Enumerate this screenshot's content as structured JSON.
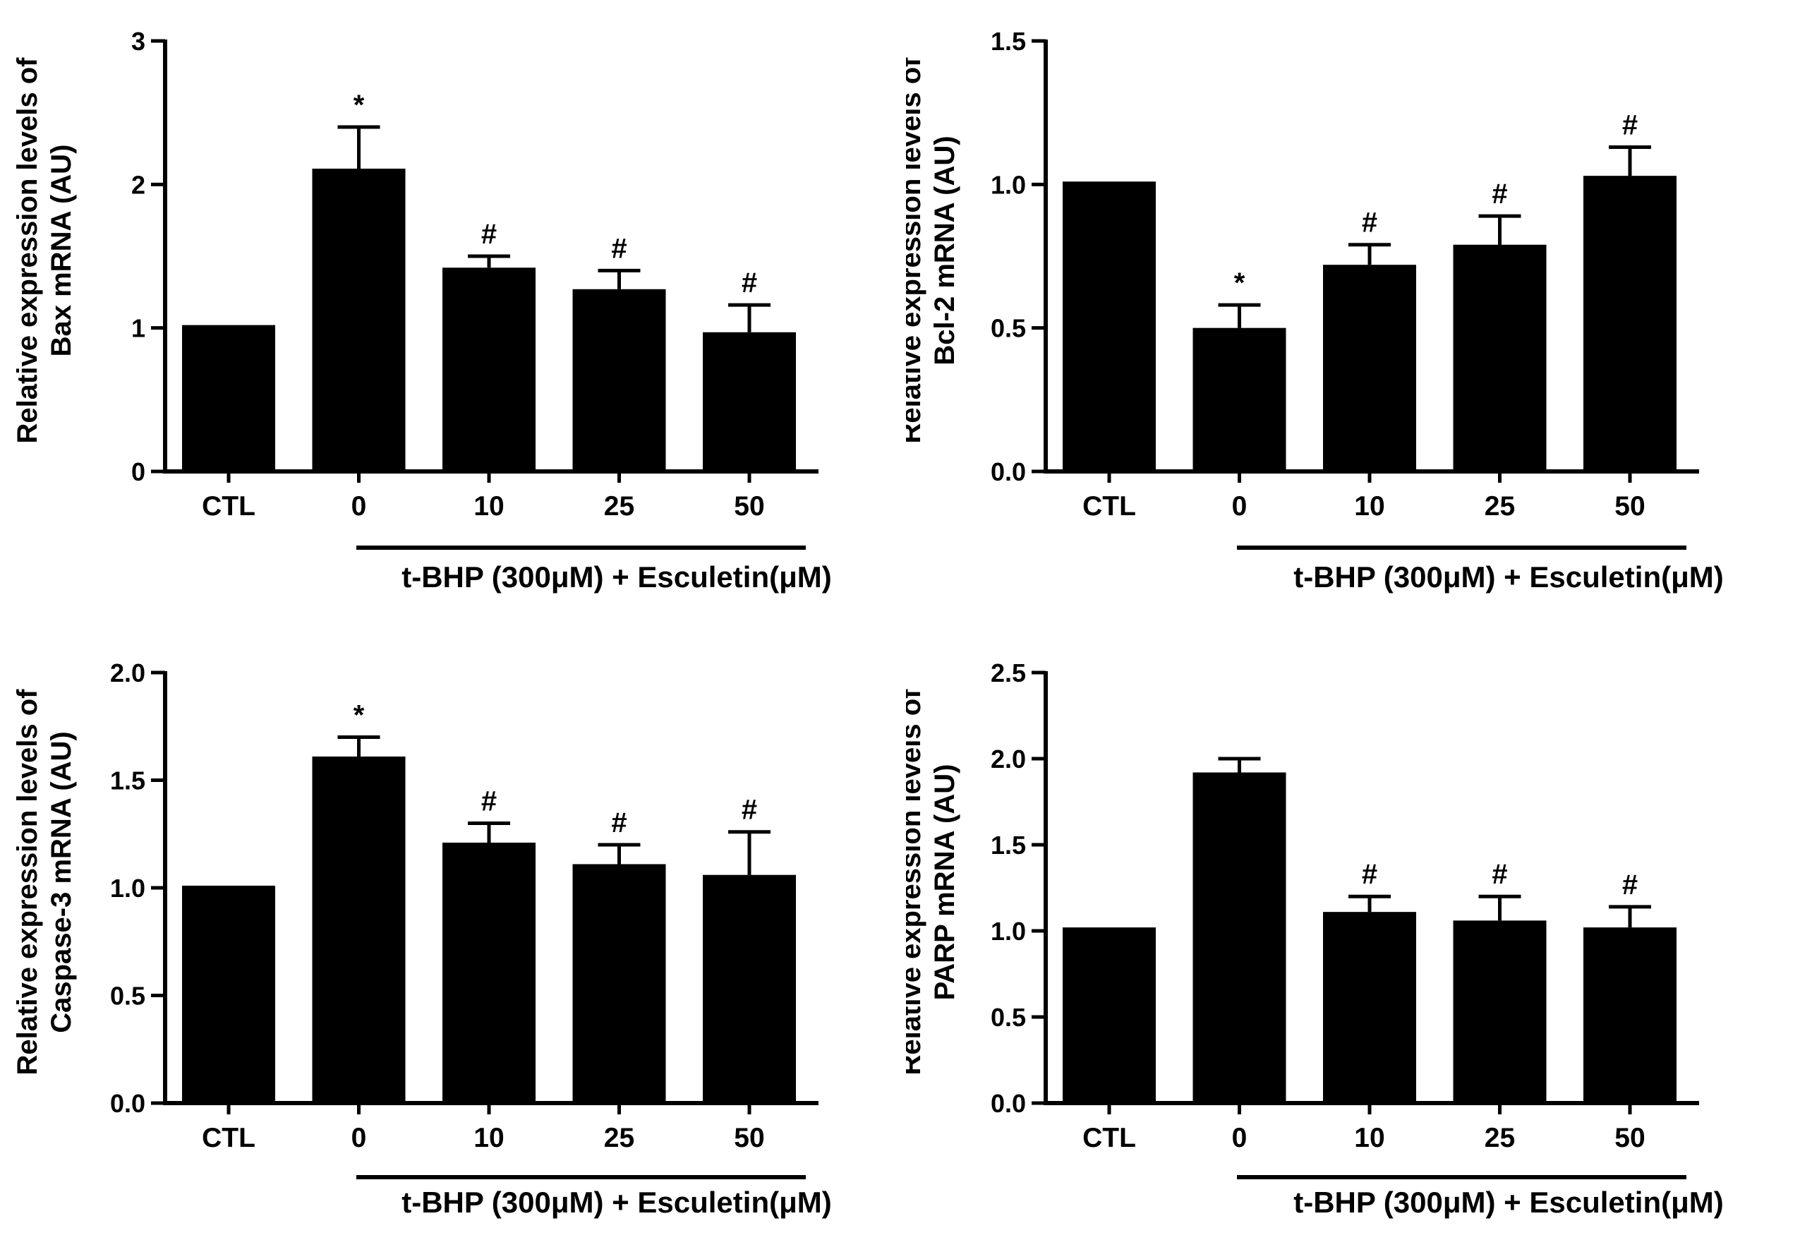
{
  "chart_data": [
    {
      "type": "bar",
      "title": "",
      "ylabel_line1": "Relative expression levels of",
      "ylabel_line2": "Bax mRNA (AU)",
      "categories": [
        "CTL",
        "0",
        "10",
        "25",
        "50"
      ],
      "values": [
        1.02,
        2.11,
        1.42,
        1.27,
        0.97
      ],
      "errors": [
        0,
        0.29,
        0.08,
        0.13,
        0.19
      ],
      "significance": [
        "",
        "*",
        "#",
        "#",
        "#"
      ],
      "ylim": [
        0,
        3
      ],
      "yticks": [
        0,
        1,
        2,
        3
      ],
      "ytick_labels": [
        "0",
        "1",
        "2",
        "3"
      ],
      "group_label": "t-BHP (300μM) + Esculetin(μM)",
      "bar_color": "#000000"
    },
    {
      "type": "bar",
      "title": "",
      "ylabel_line1": "Relative expression levels of",
      "ylabel_line2": "Bcl-2 mRNA (AU)",
      "categories": [
        "CTL",
        "0",
        "10",
        "25",
        "50"
      ],
      "values": [
        1.01,
        0.5,
        0.72,
        0.79,
        1.03
      ],
      "errors": [
        0,
        0.08,
        0.07,
        0.1,
        0.1
      ],
      "significance": [
        "",
        "*",
        "#",
        "#",
        "#"
      ],
      "ylim": [
        0,
        1.5
      ],
      "yticks": [
        0,
        0.5,
        1.0,
        1.5
      ],
      "ytick_labels": [
        "0.0",
        "0.5",
        "1.0",
        "1.5"
      ],
      "group_label": "t-BHP (300μM) + Esculetin(μM)",
      "bar_color": "#000000"
    },
    {
      "type": "bar",
      "title": "",
      "ylabel_line1": "Relative expression levels of",
      "ylabel_line2": "Caspase-3 mRNA (AU)",
      "categories": [
        "CTL",
        "0",
        "10",
        "25",
        "50"
      ],
      "values": [
        1.01,
        1.61,
        1.21,
        1.11,
        1.06
      ],
      "errors": [
        0,
        0.09,
        0.09,
        0.09,
        0.2
      ],
      "significance": [
        "",
        "*",
        "#",
        "#",
        "#"
      ],
      "ylim": [
        0,
        2.0
      ],
      "yticks": [
        0,
        0.5,
        1.0,
        1.5,
        2.0
      ],
      "ytick_labels": [
        "0.0",
        "0.5",
        "1.0",
        "1.5",
        "2.0"
      ],
      "group_label": "t-BHP (300μM) + Esculetin(μM)",
      "bar_color": "#000000"
    },
    {
      "type": "bar",
      "title": "",
      "ylabel_line1": "Relative expression levels of",
      "ylabel_line2": "PARP mRNA (AU)",
      "categories": [
        "CTL",
        "0",
        "10",
        "25",
        "50"
      ],
      "values": [
        1.02,
        1.92,
        1.11,
        1.06,
        1.02
      ],
      "errors": [
        0,
        0.08,
        0.09,
        0.14,
        0.12
      ],
      "significance": [
        "",
        "",
        "#",
        "#",
        "#"
      ],
      "ylim": [
        0,
        2.5
      ],
      "yticks": [
        0,
        0.5,
        1.0,
        1.5,
        2.0,
        2.5
      ],
      "ytick_labels": [
        "0.0",
        "0.5",
        "1.0",
        "1.5",
        "2.0",
        "2.5"
      ],
      "group_label": "t-BHP (300μM) + Esculetin(μM)",
      "bar_color": "#000000"
    }
  ]
}
